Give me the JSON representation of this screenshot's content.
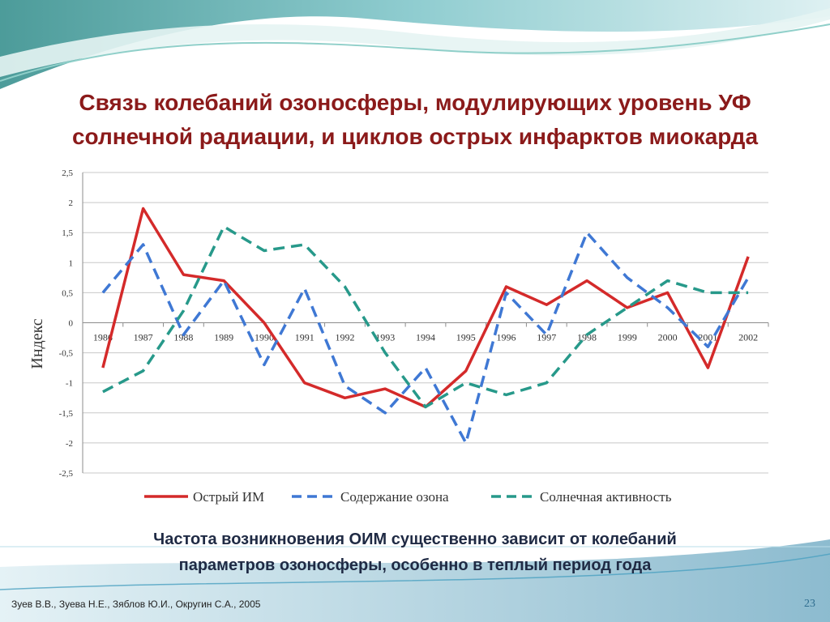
{
  "slide": {
    "title_line1": "Связь колебаний озоносферы, модулирующих уровень УФ",
    "title_line2": "солнечной радиации, и циклов острых инфарктов миокарда",
    "caption_line1": "Частота возникновения ОИМ существенно зависит от колебаний",
    "caption_line2": "параметров озоносферы, особенно в теплый период года",
    "footer": "Зуев В.В., Зуева Н.Е., Зяблов Ю.И., Округин С.А., 2005",
    "page_number": "23",
    "title_color": "#8b1a1a",
    "caption_color": "#1f2a44"
  },
  "chart_data": {
    "type": "line",
    "title": "",
    "xlabel": "",
    "ylabel": "Индекс",
    "ylim": [
      -2.5,
      2.5
    ],
    "yticks": [
      "2,5",
      "2",
      "1,5",
      "1",
      "0,5",
      "0",
      "-0,5",
      "-1",
      "-1,5",
      "-2",
      "-2,5"
    ],
    "ytick_values": [
      2.5,
      2,
      1.5,
      1,
      0.5,
      0,
      -0.5,
      -1,
      -1.5,
      -2,
      -2.5
    ],
    "categories": [
      "1986",
      "1987",
      "1988",
      "1989",
      "1990",
      "1991",
      "1992",
      "1993",
      "1994",
      "1995",
      "1996",
      "1997",
      "1998",
      "1999",
      "2000",
      "2001",
      "2002"
    ],
    "grid": true,
    "legend_position": "bottom",
    "series": [
      {
        "name": "Острый ИМ",
        "color": "#d42a2a",
        "dash": "solid",
        "values": [
          -0.75,
          1.9,
          0.8,
          0.7,
          0.0,
          -1.0,
          -1.25,
          -1.1,
          -1.4,
          -0.8,
          0.6,
          0.3,
          0.7,
          0.25,
          0.5,
          -0.75,
          1.1
        ]
      },
      {
        "name": "Содержание озона",
        "color": "#3f78d4",
        "dash": "long",
        "values": [
          0.5,
          1.3,
          -0.2,
          0.7,
          -0.7,
          0.57,
          -1.05,
          -1.5,
          -0.75,
          -2.0,
          0.5,
          -0.2,
          1.5,
          0.75,
          0.25,
          -0.4,
          0.75
        ]
      },
      {
        "name": "Солнечная активность",
        "color": "#27998a",
        "dash": "long",
        "values": [
          -1.15,
          -0.8,
          0.2,
          1.6,
          1.2,
          1.3,
          0.6,
          -0.5,
          -1.4,
          -1.0,
          -1.2,
          -1.0,
          -0.2,
          0.25,
          0.7,
          0.5,
          0.5
        ]
      }
    ]
  }
}
